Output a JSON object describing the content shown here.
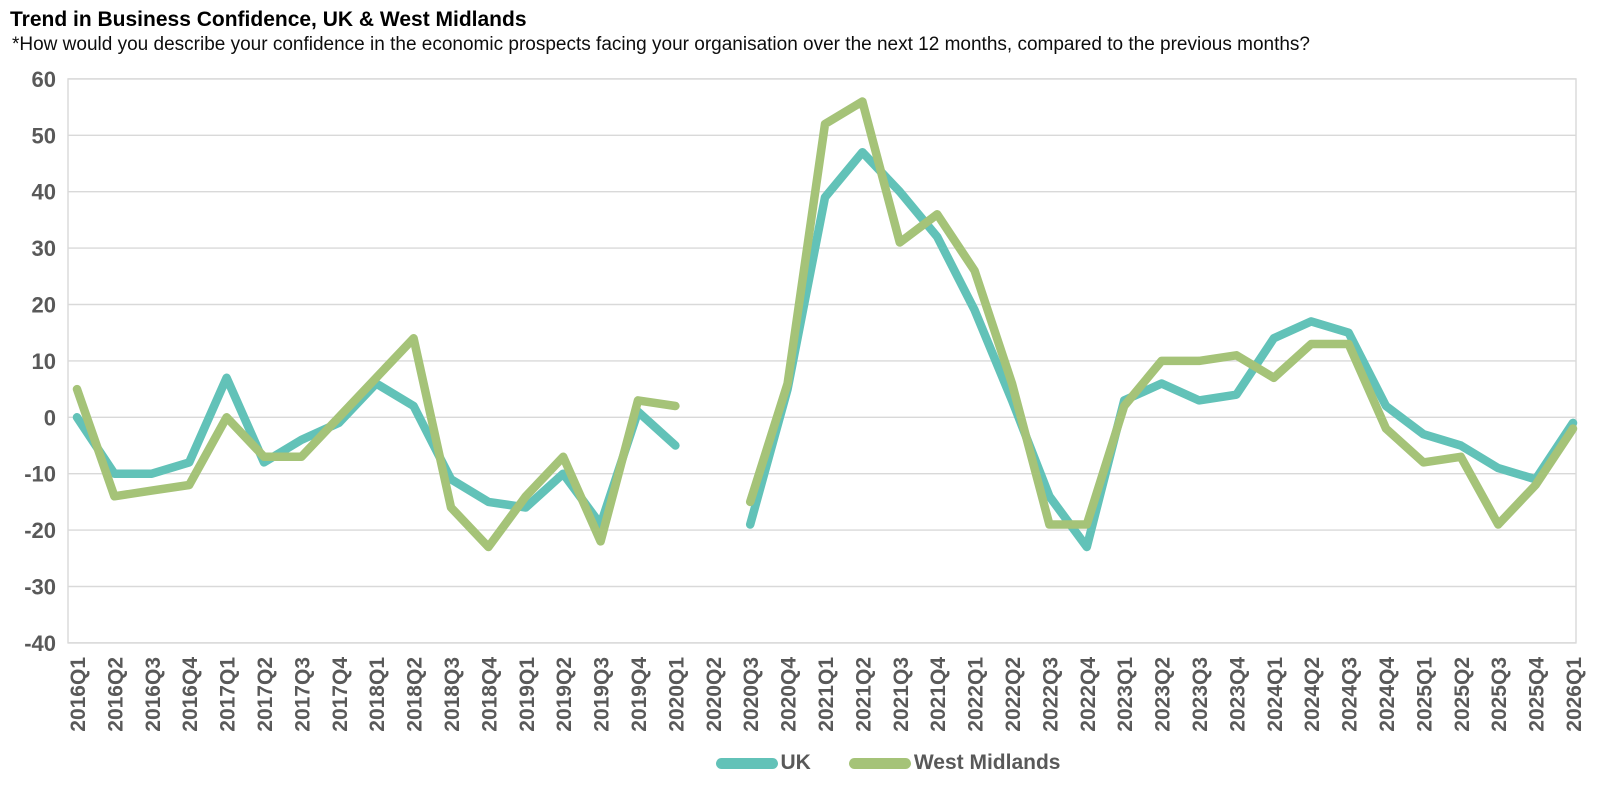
{
  "title": "Trend in Business Confidence, UK & West Midlands",
  "subtitle": "*How would you describe your confidence in the economic prospects facing your organisation over the next 12 months, compared to the previous months?",
  "legend": {
    "position": "bottom",
    "items": [
      "UK",
      "West Midlands"
    ]
  },
  "colors": {
    "uk_line": "#62C2B8",
    "west_midlands_line": "#A5C378",
    "gridline": "#D9D9D9",
    "plot_border": "#D9D9D9",
    "tick_label": "#595959",
    "legend_label": "#595959",
    "title_text": "#000000"
  },
  "chart_data": {
    "type": "line",
    "title": "Trend in Business Confidence, UK & West Midlands",
    "subtitle": "*How would you describe your confidence in the economic prospects facing your organisation over the next 12 months, compared to the previous months?",
    "xlabel": "",
    "ylabel": "",
    "ylim": [
      -40,
      60
    ],
    "ytick_step": 10,
    "grid": true,
    "legend_position": "bottom",
    "note": "Both series have a gap (no data) at 2020Q2",
    "categories": [
      "2016Q1",
      "2016Q2",
      "2016Q3",
      "2016Q4",
      "2017Q1",
      "2017Q2",
      "2017Q3",
      "2017Q4",
      "2018Q1",
      "2018Q2",
      "2018Q3",
      "2018Q4",
      "2019Q1",
      "2019Q2",
      "2019Q3",
      "2019Q4",
      "2020Q1",
      "2020Q2",
      "2020Q3",
      "2020Q4",
      "2021Q1",
      "2021Q2",
      "2021Q3",
      "2021Q4",
      "2022Q1",
      "2022Q2",
      "2022Q3",
      "2022Q4",
      "2023Q1",
      "2023Q2",
      "2023Q3",
      "2023Q4",
      "2024Q1",
      "2024Q2",
      "2024Q3",
      "2024Q4",
      "2025Q1",
      "2025Q2",
      "2025Q3",
      "2025Q4",
      "2026Q1"
    ],
    "series": [
      {
        "name": "UK",
        "color": "#62C2B8",
        "values": [
          0,
          -10,
          -10,
          -8,
          7,
          -8,
          -4,
          -1,
          6,
          2,
          -11,
          -15,
          -16,
          -10,
          -19,
          1,
          -5,
          null,
          -19,
          5,
          39,
          47,
          40,
          32,
          19,
          3,
          -14,
          -23,
          3,
          6,
          3,
          4,
          14,
          17,
          15,
          2,
          -3,
          -5,
          -9,
          -11,
          -1
        ]
      },
      {
        "name": "West Midlands",
        "color": "#A5C378",
        "values": [
          5,
          -14,
          -13,
          -12,
          0,
          -7,
          -7,
          0,
          7,
          14,
          -16,
          -23,
          -14,
          -7,
          -22,
          3,
          2,
          null,
          -15,
          6,
          52,
          56,
          31,
          36,
          26,
          6,
          -19,
          -19,
          2,
          10,
          10,
          11,
          7,
          13,
          13,
          -2,
          -8,
          -7,
          -19,
          -12,
          -2
        ]
      }
    ]
  }
}
